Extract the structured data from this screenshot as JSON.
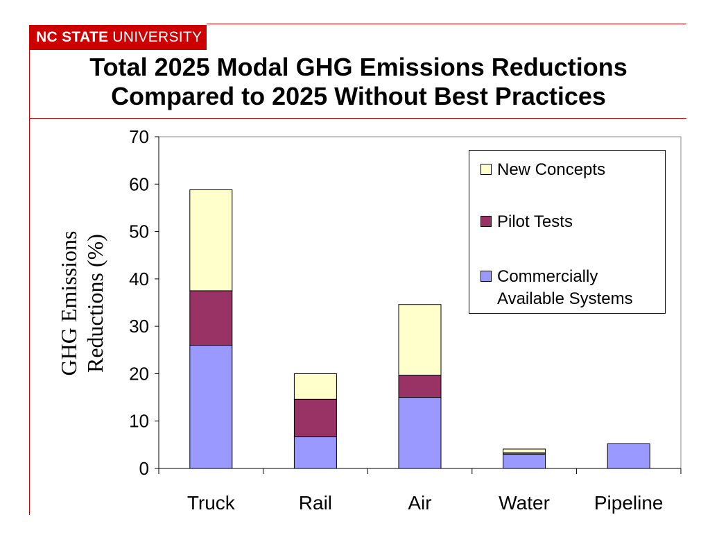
{
  "header": {
    "logo_bold": "NC STATE",
    "logo_regular": "UNIVERSITY",
    "title_line1": "Total 2025 Modal GHG Emissions Reductions",
    "title_line2": "Compared to 2025 Without Best Practices"
  },
  "colors": {
    "brand_red": "#cc0000",
    "commercially": "#9999ff",
    "pilot": "#993366",
    "new_concepts": "#ffffcc"
  },
  "chart_data": {
    "type": "bar",
    "stacked": true,
    "title": "",
    "xlabel": "",
    "ylabel_line1": "GHG Emissions",
    "ylabel_line2": "Reductions (%)",
    "ylim": [
      0,
      70
    ],
    "yticks": [
      "0",
      "10",
      "20",
      "30",
      "40",
      "50",
      "60",
      "70"
    ],
    "categories": [
      "Truck",
      "Rail",
      "Air",
      "Water",
      "Pipeline"
    ],
    "series": [
      {
        "name": "Commercially Available Systems",
        "name_line1": "Commercially",
        "name_line2": "Available Systems",
        "color": "#9999ff",
        "values": [
          26,
          6.7,
          15,
          3,
          5.2
        ]
      },
      {
        "name": "Pilot Tests",
        "color": "#993366",
        "values": [
          11.5,
          7.9,
          4.7,
          0.3,
          0
        ]
      },
      {
        "name": "New Concepts",
        "color": "#ffffcc",
        "values": [
          21.3,
          5.4,
          14.9,
          0.8,
          0
        ]
      }
    ],
    "legend_position": "top-right",
    "grid": false
  }
}
